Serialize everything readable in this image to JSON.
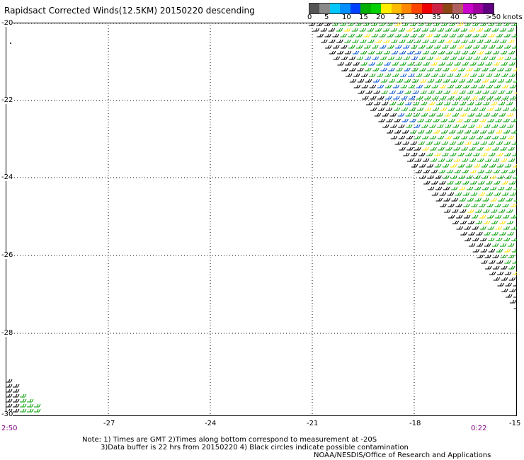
{
  "title": "Rapidsact Corrected Winds(12.5KM) 20150220 descending",
  "colorbar": {
    "colors": [
      "#555555",
      "#8a8a8a",
      "#00c8ff",
      "#0090ff",
      "#0040ff",
      "#00b000",
      "#00d000",
      "#ffee00",
      "#ffbb00",
      "#ff8800",
      "#ff4400",
      "#ee0000",
      "#cc2244",
      "#8b4513",
      "#b06060",
      "#cc00cc",
      "#a000a0",
      "#600080"
    ],
    "labels": [
      "0",
      "5",
      "10",
      "15",
      "20",
      "25",
      "30",
      "35",
      "40",
      "45",
      ">50 knots"
    ]
  },
  "lat_labels": [
    "-20",
    "-22",
    "-24",
    "-26",
    "-28",
    "-30"
  ],
  "lon_labels": [
    "-27",
    "-24",
    "-21",
    "-18",
    "-15"
  ],
  "time_left": "2:50",
  "time_right": "0:22",
  "notes": {
    "line1": "Note: 1) Times are GMT 2)Times along bottom correspond to measurement at -20S",
    "line2": "3)Data buffer is 22 hrs from 20150220 4) Black circles indicate possible contamination",
    "line3": "NOAA/NESDIS/Office of Research and Applications"
  }
}
